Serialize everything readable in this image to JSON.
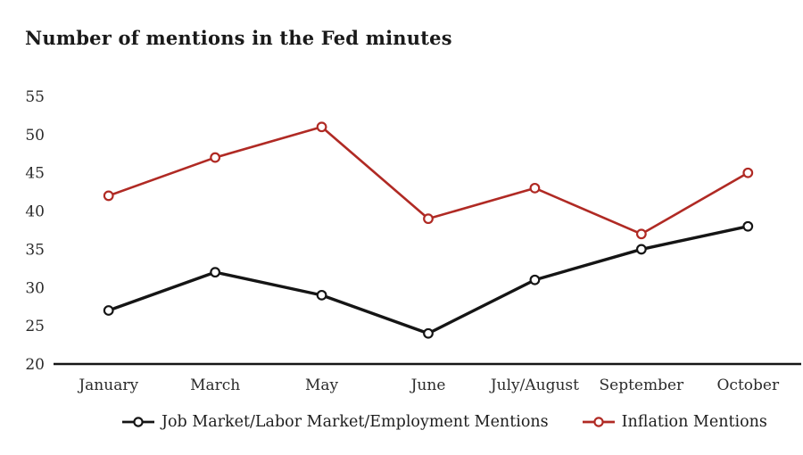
{
  "title": "Number of mentions in the Fed minutes",
  "chart_data": {
    "type": "line",
    "title": "Number of mentions in the Fed minutes",
    "categories": [
      "January",
      "March",
      "May",
      "June",
      "July/August",
      "September",
      "October"
    ],
    "series": [
      {
        "name": "Job Market/Labor Market/Employment Mentions",
        "values": [
          27,
          32,
          29,
          24,
          31,
          35,
          38
        ],
        "color": "#151515",
        "line_width": 3.4
      },
      {
        "name": "Inflation Mentions",
        "values": [
          42,
          47,
          51,
          39,
          43,
          37,
          45
        ],
        "color": "#b02a24",
        "line_width": 2.6
      }
    ],
    "ylim": [
      20,
      55
    ],
    "yticks": [
      20,
      25,
      30,
      35,
      40,
      45,
      50,
      55
    ],
    "xlabel": "",
    "ylabel": "",
    "grid": false,
    "legend_position": "bottom",
    "marker": "open-circle",
    "axis_color": "#151515",
    "tick_text_color": "#2b2b2b"
  }
}
